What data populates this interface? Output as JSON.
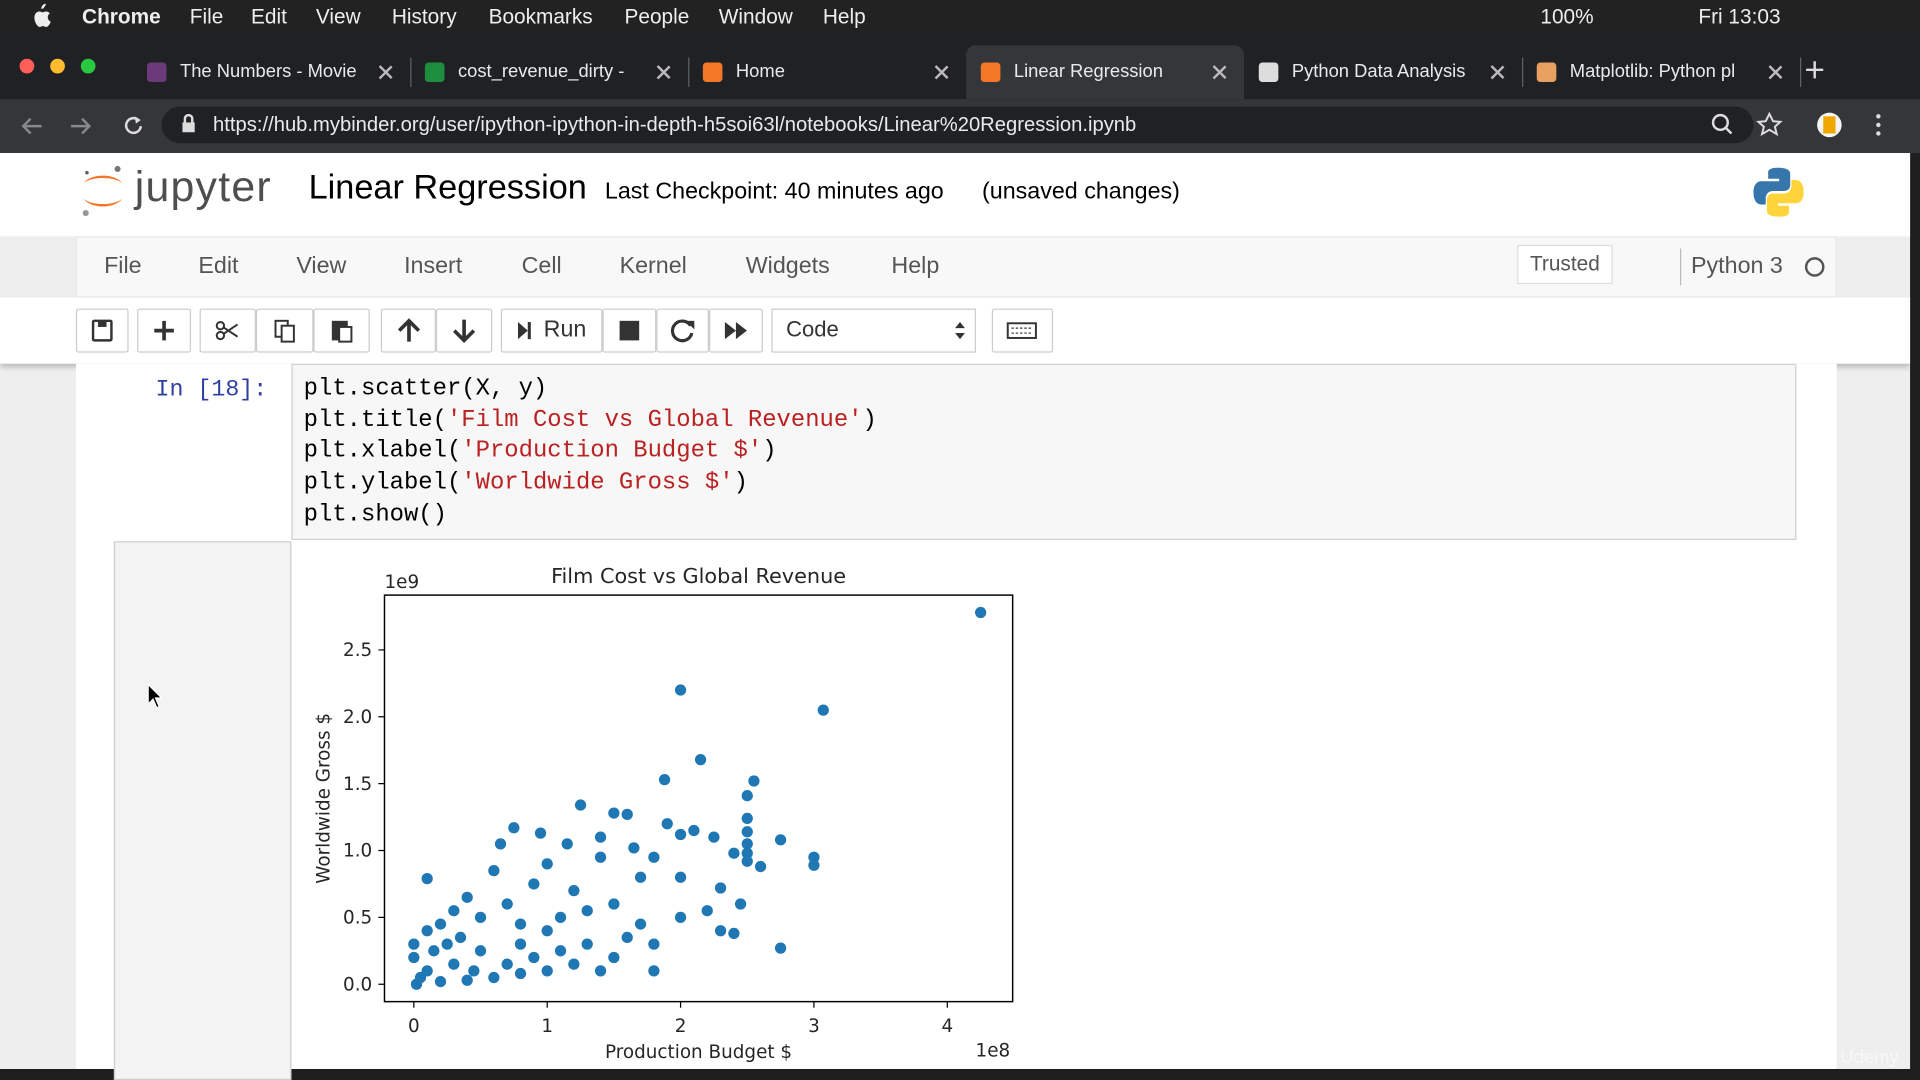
{
  "mac_menubar": {
    "items": [
      "Chrome",
      "File",
      "Edit",
      "View",
      "History",
      "Bookmarks",
      "People",
      "Window",
      "Help"
    ],
    "battery": "100%",
    "clock": "Fri 13:03"
  },
  "tabs": [
    "The Numbers - Movie",
    "cost_revenue_dirty -",
    "Home",
    "Linear Regression",
    "Python Data Analysis",
    "Matplotlib: Python pl"
  ],
  "url": "https://hub.mybinder.org/user/ipython-ipython-in-depth-h5soi63l/notebooks/Linear%20Regression.ipynb",
  "notebook": {
    "logo": "jupyter",
    "title": "Linear Regression",
    "checkpoint": "Last Checkpoint: 40 minutes ago",
    "status": "(unsaved changes)",
    "menu": [
      "File",
      "Edit",
      "View",
      "Insert",
      "Cell",
      "Kernel",
      "Widgets",
      "Help"
    ],
    "trusted": "Trusted",
    "kernel": "Python 3",
    "run": "Run",
    "cell_type": "Code",
    "prompt": "In [18]:",
    "code": [
      "plt.scatter(X, y)",
      "plt.title('Film Cost vs Global Revenue')",
      "plt.xlabel('Production Budget $')",
      "plt.ylabel('Worldwide Gross $')",
      "plt.show()"
    ]
  },
  "watermark": "Udemy",
  "chart_data": {
    "type": "scatter",
    "title": "Film Cost vs Global Revenue",
    "xlabel": "Production Budget $",
    "ylabel": "Worldwide Gross $",
    "x_offset_text": "1e8",
    "y_offset_text": "1e9",
    "color": "#1f77b4",
    "xlim": [
      -0.22,
      4.49
    ],
    "ylim": [
      -0.13,
      2.91
    ],
    "xticks": [
      0,
      1,
      2,
      3,
      4
    ],
    "yticks": [
      {
        "value": 0,
        "label": "0.0"
      },
      0.5,
      {
        "value": 1,
        "label": "1.0"
      },
      1.5,
      {
        "value": 2,
        "label": "2.0"
      },
      2.5
    ],
    "x": [
      4.25,
      2.0,
      3.07,
      2.15,
      1.88,
      2.55,
      2.5,
      1.25,
      1.5,
      1.6,
      2.5,
      2.5,
      2.5,
      2.5,
      2.5,
      2.75,
      3.0,
      3.0,
      2.6,
      2.4,
      2.1,
      2.25,
      1.9,
      2.0,
      2.45,
      2.75,
      0.1,
      0.75,
      0.95,
      0.65,
      1.15,
      1.4,
      1.4,
      1.65,
      1.8,
      2.3,
      2.2,
      2.3,
      2.4,
      1.7,
      1.8,
      1.5,
      1.8,
      1.0,
      0.9,
      0.6,
      0.4,
      0.3,
      0.2,
      0.1,
      0.5,
      0.7,
      1.2,
      1.3,
      1.5,
      1.0,
      0.8,
      0.5,
      0.3,
      0.1,
      0.05,
      0.2,
      0.4,
      0.6,
      0.8,
      1.0,
      1.2,
      1.4,
      0.0,
      0.0,
      0.02,
      0.15,
      0.25,
      0.35,
      0.45,
      0.7,
      0.9,
      1.1,
      1.3,
      1.6,
      2.0,
      2.0,
      1.7,
      1.1,
      0.8
    ],
    "y": [
      2.78,
      2.2,
      2.05,
      1.68,
      1.53,
      1.52,
      1.41,
      1.34,
      1.28,
      1.27,
      1.24,
      1.14,
      1.05,
      0.98,
      0.92,
      1.08,
      0.95,
      0.89,
      0.88,
      0.98,
      1.15,
      1.1,
      1.2,
      1.12,
      0.6,
      0.27,
      0.79,
      1.17,
      1.13,
      1.05,
      1.05,
      1.1,
      0.95,
      1.02,
      0.95,
      0.72,
      0.55,
      0.4,
      0.38,
      0.45,
      0.3,
      0.2,
      0.1,
      0.9,
      0.75,
      0.85,
      0.65,
      0.55,
      0.45,
      0.4,
      0.5,
      0.6,
      0.7,
      0.55,
      0.6,
      0.4,
      0.3,
      0.25,
      0.15,
      0.1,
      0.05,
      0.02,
      0.03,
      0.05,
      0.08,
      0.1,
      0.15,
      0.1,
      0.2,
      0.3,
      0.0,
      0.25,
      0.3,
      0.35,
      0.1,
      0.15,
      0.2,
      0.25,
      0.3,
      0.35,
      0.5,
      0.8,
      0.8,
      0.5,
      0.45
    ]
  }
}
